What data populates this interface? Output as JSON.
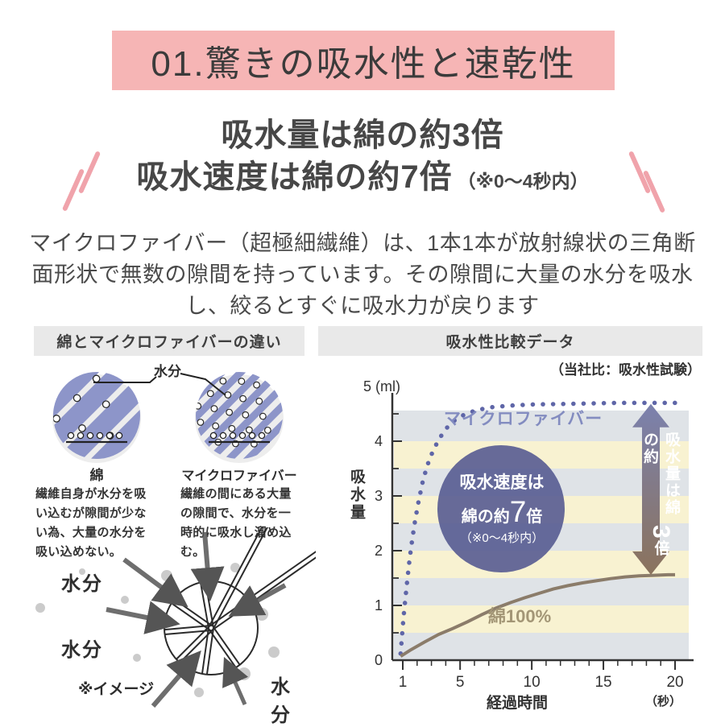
{
  "banner": {
    "title": "01.驚きの吸水性と速乾性"
  },
  "headline": {
    "line1": "吸水量は綿の約3倍",
    "line2": "吸水速度は綿の約7倍",
    "note": "（※0〜4秒内）"
  },
  "intro": "マイクロファイバー（超極細繊維）は、1本1本が放射線状の三角断面形状で無数の隙間を持っています。その隙間に大量の水分を吸水し、絞るとすぐに吸水力が戻ります",
  "left_panel": {
    "header": "綿とマイクロファイバーの違い",
    "moisture_label": "水分",
    "cotton": {
      "title": "綿",
      "desc": "繊維自身が水分を吸い込むが隙間が少ない為、大量の水分を吸い込めない。"
    },
    "microfiber": {
      "title": "マイクロファイバー",
      "desc": "繊維の間にある大量の隙間で、水分を一時的に吸水し溜め込む。"
    },
    "bottom_diagram": {
      "moisture1": "水分",
      "moisture2": "水分",
      "moisture3": "水分",
      "caption": "※イメージ"
    }
  },
  "right_panel": {
    "header": "吸水性比較データ",
    "note": "（当社比：吸水性試験）",
    "circle_callout": {
      "line1": "吸水速度は",
      "line2_pre": "綿の約",
      "line2_big": "7",
      "line2_post": "倍",
      "line3": "（※0〜4秒内）"
    },
    "arrow_label": {
      "pre": "吸水量は綿の約",
      "big": "3",
      "post": "倍"
    }
  },
  "chart_data": {
    "type": "line",
    "title": "吸水性比較データ",
    "source_note": "（当社比：吸水性試験）",
    "xlabel": "経過時間",
    "x_unit": "（秒）",
    "ylabel": "吸水量",
    "y_unit_label": "5 (ml)",
    "xlim": [
      0,
      20
    ],
    "ylim": [
      0,
      5
    ],
    "x_ticks": [
      1,
      5,
      10,
      15,
      20
    ],
    "y_ticks": [
      0,
      1,
      2,
      3,
      4
    ],
    "grid": "striped-bands",
    "stripe_colors": [
      "#dfe3e7",
      "#f8f2d1"
    ],
    "series": [
      {
        "name": "マイクロファイバー",
        "style": "dotted",
        "color": "#5f66a8",
        "points": [
          [
            0.85,
            0.12
          ],
          [
            0.95,
            0.45
          ],
          [
            1.05,
            0.78
          ],
          [
            1.18,
            1.12
          ],
          [
            1.32,
            1.48
          ],
          [
            1.48,
            1.85
          ],
          [
            1.66,
            2.2
          ],
          [
            1.86,
            2.55
          ],
          [
            2.1,
            2.9
          ],
          [
            2.38,
            3.25
          ],
          [
            2.7,
            3.55
          ],
          [
            3.1,
            3.82
          ],
          [
            3.55,
            4.05
          ],
          [
            4.1,
            4.25
          ],
          [
            4.7,
            4.4
          ],
          [
            5.4,
            4.5
          ],
          [
            6.2,
            4.57
          ],
          [
            7.2,
            4.62
          ],
          [
            8.5,
            4.65
          ],
          [
            10,
            4.67
          ],
          [
            12,
            4.68
          ],
          [
            14,
            4.69
          ],
          [
            16,
            4.7
          ],
          [
            18,
            4.7
          ],
          [
            20,
            4.7
          ]
        ]
      },
      {
        "name": "綿100%",
        "style": "solid",
        "color": "#8b7c6a",
        "points": [
          [
            0.85,
            0.07
          ],
          [
            1.5,
            0.18
          ],
          [
            2.5,
            0.33
          ],
          [
            3.5,
            0.47
          ],
          [
            4.5,
            0.58
          ],
          [
            5.5,
            0.7
          ],
          [
            6.5,
            0.83
          ],
          [
            7.5,
            0.95
          ],
          [
            8.5,
            1.05
          ],
          [
            9.5,
            1.14
          ],
          [
            10.5,
            1.22
          ],
          [
            11.5,
            1.3
          ],
          [
            12.5,
            1.36
          ],
          [
            13.5,
            1.41
          ],
          [
            14.5,
            1.45
          ],
          [
            15.5,
            1.49
          ],
          [
            16.5,
            1.52
          ],
          [
            17.5,
            1.54
          ],
          [
            18.5,
            1.55
          ],
          [
            19.5,
            1.56
          ],
          [
            20,
            1.56
          ]
        ]
      }
    ],
    "annotations": [
      {
        "type": "circle-callout",
        "text": "吸水速度は綿の約7倍（※0〜4秒内）",
        "x": 7.8,
        "y": 2.8
      },
      {
        "type": "vertical-double-arrow",
        "text": "吸水量は綿の約3倍",
        "x": 18.3,
        "y_from": 4.68,
        "y_to": 1.56
      }
    ]
  },
  "colors": {
    "banner_bg": "#f6b5b5",
    "slash_pink": "#f0a3ab",
    "panel_header_bg": "#e9e9e9",
    "fiber_blue": "#8d95c9",
    "circle_gray": "#ededed",
    "stripe_gray": "#dfe3e7",
    "stripe_yellow": "#f8f2d1",
    "callout_fill": "#565b91",
    "arrow_top": "#7b81ae",
    "arrow_bottom": "#8b735c",
    "micro_label": "#838cc0",
    "cotton_label": "#a39676"
  }
}
